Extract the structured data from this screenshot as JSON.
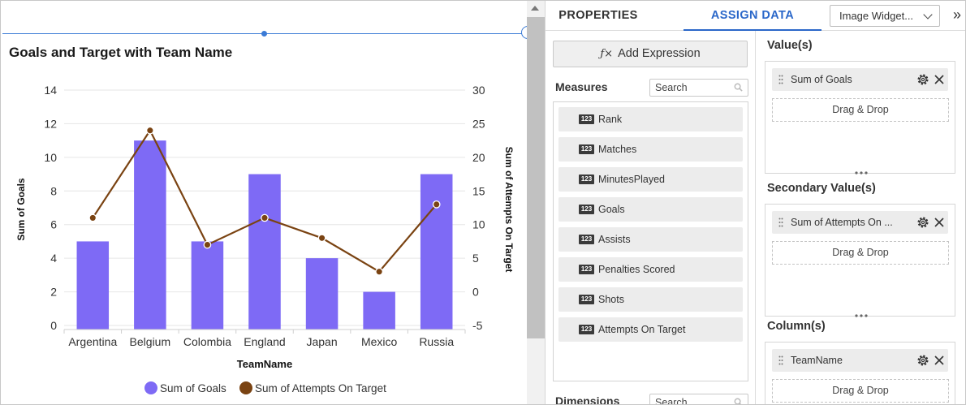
{
  "chart": {
    "title": "Goals and Target with Team Name"
  },
  "chart_data": {
    "type": "bar+line",
    "title": "Goals and Target with Team Name",
    "xlabel": "TeamName",
    "ylabel": "Sum of Goals",
    "y2label": "Sum of Attempts On Target",
    "categories": [
      "Argentina",
      "Belgium",
      "Colombia",
      "England",
      "Japan",
      "Mexico",
      "Russia"
    ],
    "ylim": [
      0,
      14
    ],
    "y_ticks": [
      "0",
      "2",
      "4",
      "6",
      "8",
      "10",
      "12",
      "14"
    ],
    "y2lim": [
      -5,
      30
    ],
    "y2_ticks": [
      "-5",
      "0",
      "5",
      "10",
      "15",
      "20",
      "25",
      "30"
    ],
    "grid": true,
    "legend_position": "bottom",
    "series": [
      {
        "name": "Sum of Goals",
        "type": "bar",
        "axis": "primary",
        "color": "#7e6af5",
        "values": [
          5,
          11,
          5,
          9,
          4,
          2,
          9
        ]
      },
      {
        "name": "Sum of Attempts On Target",
        "type": "line",
        "axis": "secondary",
        "color": "#7a4312",
        "values": [
          11,
          24,
          7,
          11,
          8,
          3,
          13
        ]
      }
    ]
  },
  "tabs": {
    "properties": "PROPERTIES",
    "assign": "ASSIGN DATA",
    "widget_select": "Image Widget...",
    "collapse": "»"
  },
  "left_column": {
    "add_expression": "Add Expression",
    "measures_label": "Measures",
    "measures_search_placeholder": "Search",
    "dimensions_label": "Dimensions",
    "dimensions_search_placeholder": "Search",
    "type_badge": "123",
    "measures": [
      "Rank",
      "Matches",
      "MinutesPlayed",
      "Goals",
      "Assists",
      "Penalties Scored",
      "Shots",
      "Attempts On Target"
    ]
  },
  "right_column": {
    "values_label": "Value(s)",
    "values_chip": "Sum of Goals",
    "secondary_label": "Secondary Value(s)",
    "secondary_chip": "Sum of Attempts On ...",
    "columns_label": "Column(s)",
    "columns_chip": "TeamName",
    "drag_drop": "Drag & Drop"
  },
  "colors": {
    "accent": "#2a67c9",
    "bar": "#7e6af5",
    "line": "#7a4312"
  }
}
